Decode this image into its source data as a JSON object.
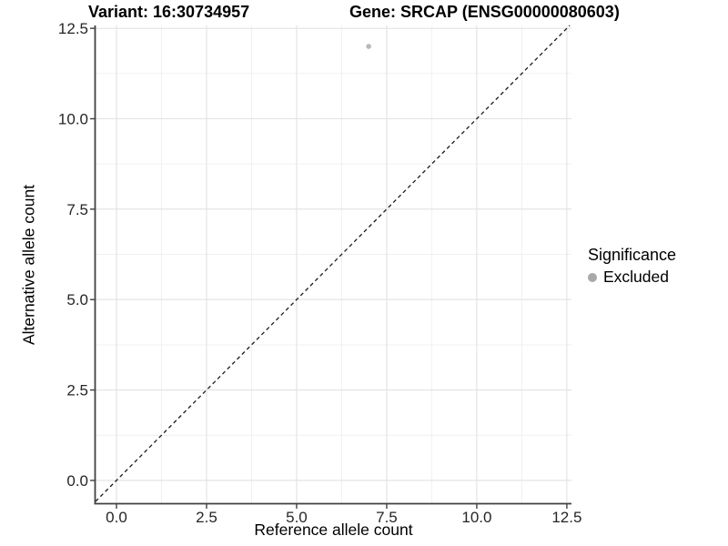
{
  "title": {
    "left": "Variant: 16:30734957",
    "right": "Gene: SRCAP (ENSG00000080603)"
  },
  "chart_data": {
    "type": "scatter",
    "title_left": "Variant: 16:30734957",
    "title_right": "Gene: SRCAP (ENSG00000080603)",
    "x": {
      "label": "Reference allele count",
      "ticks": [
        0,
        2.5,
        5,
        7.5,
        10,
        12.5
      ],
      "tick_labels": [
        "0.0",
        "2.5",
        "5.0",
        "7.5",
        "10.0",
        "12.5"
      ],
      "range": [
        0,
        12.5
      ],
      "domain": [
        -0.581,
        12.629
      ]
    },
    "y": {
      "label": "Alternative allele count",
      "ticks": [
        0,
        2.5,
        5,
        7.5,
        10,
        12.5
      ],
      "tick_labels": [
        "0.0",
        "2.5",
        "5.0",
        "7.5",
        "10.0",
        "12.5"
      ],
      "range": [
        0,
        12.5
      ],
      "domain": [
        -0.631,
        12.579
      ]
    },
    "grid": true,
    "series": [
      {
        "name": "Excluded",
        "color": "#b8b8b8",
        "points": [
          {
            "x": 7,
            "y": 12
          }
        ]
      }
    ],
    "reference_line": {
      "type": "identity",
      "slope": 1,
      "intercept": 0,
      "style": "dashed",
      "color": "#1a1a1a"
    },
    "legend": {
      "title": "Significance",
      "position": "right",
      "items": [
        {
          "label": "Excluded",
          "color": "#a8a8a8"
        }
      ]
    },
    "colors": {
      "major_gridline": "#e2e2e2",
      "minor_gridline": "#efefef",
      "axis_line": "#404040",
      "tick_mark": "#404040",
      "tick_label": "#262626",
      "point": "#b8b8b8"
    }
  }
}
